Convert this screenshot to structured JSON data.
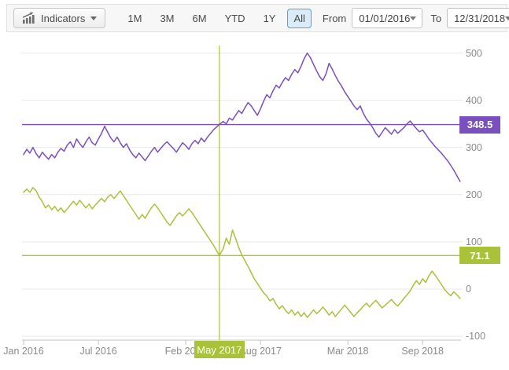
{
  "toolbar": {
    "indicators_label": "Indicators",
    "ranges": [
      "1M",
      "3M",
      "6M",
      "YTD",
      "1Y",
      "All"
    ],
    "selected_range": "All",
    "from_label": "From",
    "from_value": "01/01/2016",
    "to_label": "To",
    "to_value": "12/31/2018"
  },
  "colors": {
    "purple": "#7a4fbe",
    "olive": "#a9c23a",
    "selected_range_bg": "#d9ecf8",
    "selected_range_border": "#44a8de",
    "grid": "#e9e9e9",
    "axis": "#c3c3c3",
    "axis_text": "#8a8a8a"
  },
  "chart_data": {
    "type": "line",
    "x_axis": {
      "tick_labels": [
        "Jan 2016",
        "Jul 2016",
        "Feb 2017",
        "Aug 2017",
        "Mar 2018",
        "Sep 2018"
      ],
      "tick_months": [
        0,
        6,
        13,
        19,
        26,
        32
      ]
    },
    "y_axis": {
      "ticks": [
        500,
        400,
        300,
        200,
        100,
        0,
        -100
      ],
      "position": "right"
    },
    "crosshair": {
      "month": 15.7,
      "date_label": "May 2017",
      "purple_value": 348.5,
      "olive_value": 71.1
    },
    "series": [
      {
        "name": "series-1",
        "color": "#7a4fbe",
        "points": [
          [
            0,
            285
          ],
          [
            0.25,
            296
          ],
          [
            0.5,
            288
          ],
          [
            0.75,
            300
          ],
          [
            1,
            287
          ],
          [
            1.25,
            278
          ],
          [
            1.5,
            290
          ],
          [
            1.75,
            282
          ],
          [
            2,
            275
          ],
          [
            2.25,
            285
          ],
          [
            2.5,
            278
          ],
          [
            2.75,
            290
          ],
          [
            3,
            298
          ],
          [
            3.25,
            292
          ],
          [
            3.5,
            305
          ],
          [
            3.75,
            312
          ],
          [
            4,
            300
          ],
          [
            4.25,
            318
          ],
          [
            4.5,
            308
          ],
          [
            4.75,
            300
          ],
          [
            5,
            312
          ],
          [
            5.25,
            322
          ],
          [
            5.5,
            310
          ],
          [
            5.75,
            305
          ],
          [
            6,
            318
          ],
          [
            6.25,
            330
          ],
          [
            6.5,
            345
          ],
          [
            6.75,
            332
          ],
          [
            7,
            320
          ],
          [
            7.25,
            312
          ],
          [
            7.5,
            322
          ],
          [
            7.75,
            310
          ],
          [
            8,
            300
          ],
          [
            8.25,
            308
          ],
          [
            8.5,
            295
          ],
          [
            8.75,
            285
          ],
          [
            9,
            278
          ],
          [
            9.25,
            288
          ],
          [
            9.5,
            280
          ],
          [
            9.75,
            272
          ],
          [
            10,
            282
          ],
          [
            10.25,
            292
          ],
          [
            10.5,
            300
          ],
          [
            10.75,
            290
          ],
          [
            11,
            298
          ],
          [
            11.25,
            306
          ],
          [
            11.5,
            312
          ],
          [
            11.75,
            305
          ],
          [
            12,
            298
          ],
          [
            12.25,
            290
          ],
          [
            12.5,
            300
          ],
          [
            12.75,
            310
          ],
          [
            13,
            304
          ],
          [
            13.25,
            296
          ],
          [
            13.5,
            308
          ],
          [
            13.75,
            315
          ],
          [
            14,
            308
          ],
          [
            14.25,
            320
          ],
          [
            14.5,
            312
          ],
          [
            14.75,
            322
          ],
          [
            15,
            330
          ],
          [
            15.25,
            338
          ],
          [
            15.5,
            344
          ],
          [
            15.7,
            348.5
          ],
          [
            16,
            355
          ],
          [
            16.25,
            350
          ],
          [
            16.5,
            362
          ],
          [
            16.75,
            358
          ],
          [
            17,
            368
          ],
          [
            17.25,
            378
          ],
          [
            17.5,
            372
          ],
          [
            17.75,
            384
          ],
          [
            18,
            395
          ],
          [
            18.25,
            388
          ],
          [
            18.5,
            378
          ],
          [
            18.75,
            368
          ],
          [
            19,
            382
          ],
          [
            19.25,
            398
          ],
          [
            19.5,
            412
          ],
          [
            19.75,
            405
          ],
          [
            20,
            420
          ],
          [
            20.25,
            432
          ],
          [
            20.5,
            426
          ],
          [
            20.75,
            438
          ],
          [
            21,
            448
          ],
          [
            21.25,
            442
          ],
          [
            21.5,
            455
          ],
          [
            21.75,
            465
          ],
          [
            22,
            458
          ],
          [
            22.25,
            472
          ],
          [
            22.5,
            488
          ],
          [
            22.75,
            500
          ],
          [
            23,
            490
          ],
          [
            23.25,
            476
          ],
          [
            23.5,
            462
          ],
          [
            23.75,
            450
          ],
          [
            24,
            442
          ],
          [
            24.25,
            456
          ],
          [
            24.5,
            478
          ],
          [
            24.75,
            466
          ],
          [
            25,
            452
          ],
          [
            25.25,
            440
          ],
          [
            25.5,
            430
          ],
          [
            25.75,
            418
          ],
          [
            26,
            408
          ],
          [
            26.25,
            398
          ],
          [
            26.5,
            388
          ],
          [
            26.75,
            380
          ],
          [
            27,
            388
          ],
          [
            27.25,
            372
          ],
          [
            27.5,
            360
          ],
          [
            27.75,
            352
          ],
          [
            28,
            342
          ],
          [
            28.25,
            330
          ],
          [
            28.5,
            322
          ],
          [
            28.75,
            332
          ],
          [
            29,
            342
          ],
          [
            29.25,
            335
          ],
          [
            29.5,
            328
          ],
          [
            29.75,
            338
          ],
          [
            30,
            330
          ],
          [
            30.25,
            336
          ],
          [
            30.5,
            342
          ],
          [
            30.75,
            350
          ],
          [
            31,
            356
          ],
          [
            31.25,
            348
          ],
          [
            31.5,
            340
          ],
          [
            31.75,
            333
          ],
          [
            32,
            337
          ],
          [
            32.25,
            328
          ],
          [
            32.5,
            318
          ],
          [
            32.75,
            310
          ],
          [
            33,
            302
          ],
          [
            33.25,
            295
          ],
          [
            33.5,
            288
          ],
          [
            33.75,
            280
          ],
          [
            34,
            272
          ],
          [
            34.25,
            262
          ],
          [
            34.5,
            252
          ],
          [
            34.75,
            240
          ],
          [
            35,
            228
          ]
        ]
      },
      {
        "name": "series-2",
        "color": "#a9c23a",
        "points": [
          [
            0,
            205
          ],
          [
            0.25,
            212
          ],
          [
            0.5,
            205
          ],
          [
            0.75,
            215
          ],
          [
            1,
            208
          ],
          [
            1.25,
            195
          ],
          [
            1.5,
            185
          ],
          [
            1.75,
            172
          ],
          [
            2,
            178
          ],
          [
            2.25,
            168
          ],
          [
            2.5,
            175
          ],
          [
            2.75,
            165
          ],
          [
            3,
            172
          ],
          [
            3.25,
            162
          ],
          [
            3.5,
            170
          ],
          [
            3.75,
            178
          ],
          [
            4,
            186
          ],
          [
            4.25,
            178
          ],
          [
            4.5,
            188
          ],
          [
            4.75,
            180
          ],
          [
            5,
            172
          ],
          [
            5.25,
            180
          ],
          [
            5.5,
            170
          ],
          [
            5.75,
            178
          ],
          [
            6,
            185
          ],
          [
            6.25,
            192
          ],
          [
            6.5,
            185
          ],
          [
            6.75,
            195
          ],
          [
            7,
            200
          ],
          [
            7.25,
            192
          ],
          [
            7.5,
            200
          ],
          [
            7.75,
            208
          ],
          [
            8,
            198
          ],
          [
            8.25,
            188
          ],
          [
            8.5,
            178
          ],
          [
            8.75,
            168
          ],
          [
            9,
            158
          ],
          [
            9.25,
            148
          ],
          [
            9.5,
            158
          ],
          [
            9.75,
            150
          ],
          [
            10,
            162
          ],
          [
            10.25,
            172
          ],
          [
            10.5,
            180
          ],
          [
            10.75,
            172
          ],
          [
            11,
            162
          ],
          [
            11.25,
            152
          ],
          [
            11.5,
            142
          ],
          [
            11.75,
            135
          ],
          [
            12,
            145
          ],
          [
            12.25,
            155
          ],
          [
            12.5,
            162
          ],
          [
            12.75,
            155
          ],
          [
            13,
            162
          ],
          [
            13.25,
            170
          ],
          [
            13.5,
            162
          ],
          [
            13.75,
            152
          ],
          [
            14,
            142
          ],
          [
            14.25,
            132
          ],
          [
            14.5,
            122
          ],
          [
            14.75,
            112
          ],
          [
            15,
            102
          ],
          [
            15.25,
            92
          ],
          [
            15.5,
            80
          ],
          [
            15.7,
            71.1
          ],
          [
            16,
            85
          ],
          [
            16.25,
            108
          ],
          [
            16.5,
            95
          ],
          [
            16.75,
            125
          ],
          [
            17,
            108
          ],
          [
            17.25,
            88
          ],
          [
            17.5,
            72
          ],
          [
            17.75,
            60
          ],
          [
            18,
            48
          ],
          [
            18.25,
            35
          ],
          [
            18.5,
            22
          ],
          [
            18.75,
            12
          ],
          [
            19,
            2
          ],
          [
            19.25,
            -8
          ],
          [
            19.5,
            -15
          ],
          [
            19.75,
            -25
          ],
          [
            20,
            -20
          ],
          [
            20.25,
            -32
          ],
          [
            20.5,
            -42
          ],
          [
            20.75,
            -35
          ],
          [
            21,
            -45
          ],
          [
            21.25,
            -52
          ],
          [
            21.5,
            -44
          ],
          [
            21.75,
            -55
          ],
          [
            22,
            -48
          ],
          [
            22.25,
            -58
          ],
          [
            22.5,
            -50
          ],
          [
            22.75,
            -60
          ],
          [
            23,
            -52
          ],
          [
            23.25,
            -44
          ],
          [
            23.5,
            -52
          ],
          [
            23.75,
            -46
          ],
          [
            24,
            -38
          ],
          [
            24.25,
            -46
          ],
          [
            24.5,
            -55
          ],
          [
            24.75,
            -48
          ],
          [
            25,
            -58
          ],
          [
            25.25,
            -50
          ],
          [
            25.5,
            -42
          ],
          [
            25.75,
            -34
          ],
          [
            26,
            -42
          ],
          [
            26.25,
            -50
          ],
          [
            26.5,
            -58
          ],
          [
            26.75,
            -50
          ],
          [
            27,
            -44
          ],
          [
            27.25,
            -36
          ],
          [
            27.5,
            -30
          ],
          [
            27.75,
            -38
          ],
          [
            28,
            -30
          ],
          [
            28.25,
            -24
          ],
          [
            28.5,
            -32
          ],
          [
            28.75,
            -40
          ],
          [
            29,
            -34
          ],
          [
            29.25,
            -28
          ],
          [
            29.5,
            -22
          ],
          [
            29.75,
            -30
          ],
          [
            30,
            -36
          ],
          [
            30.25,
            -28
          ],
          [
            30.5,
            -20
          ],
          [
            30.75,
            -12
          ],
          [
            31,
            -4
          ],
          [
            31.25,
            8
          ],
          [
            31.5,
            18
          ],
          [
            31.75,
            10
          ],
          [
            32,
            22
          ],
          [
            32.25,
            14
          ],
          [
            32.5,
            28
          ],
          [
            32.75,
            38
          ],
          [
            33,
            30
          ],
          [
            33.25,
            20
          ],
          [
            33.5,
            10
          ],
          [
            33.75,
            0
          ],
          [
            34,
            -8
          ],
          [
            34.25,
            -14
          ],
          [
            34.5,
            -6
          ],
          [
            34.75,
            -12
          ],
          [
            35,
            -20
          ]
        ]
      }
    ]
  }
}
